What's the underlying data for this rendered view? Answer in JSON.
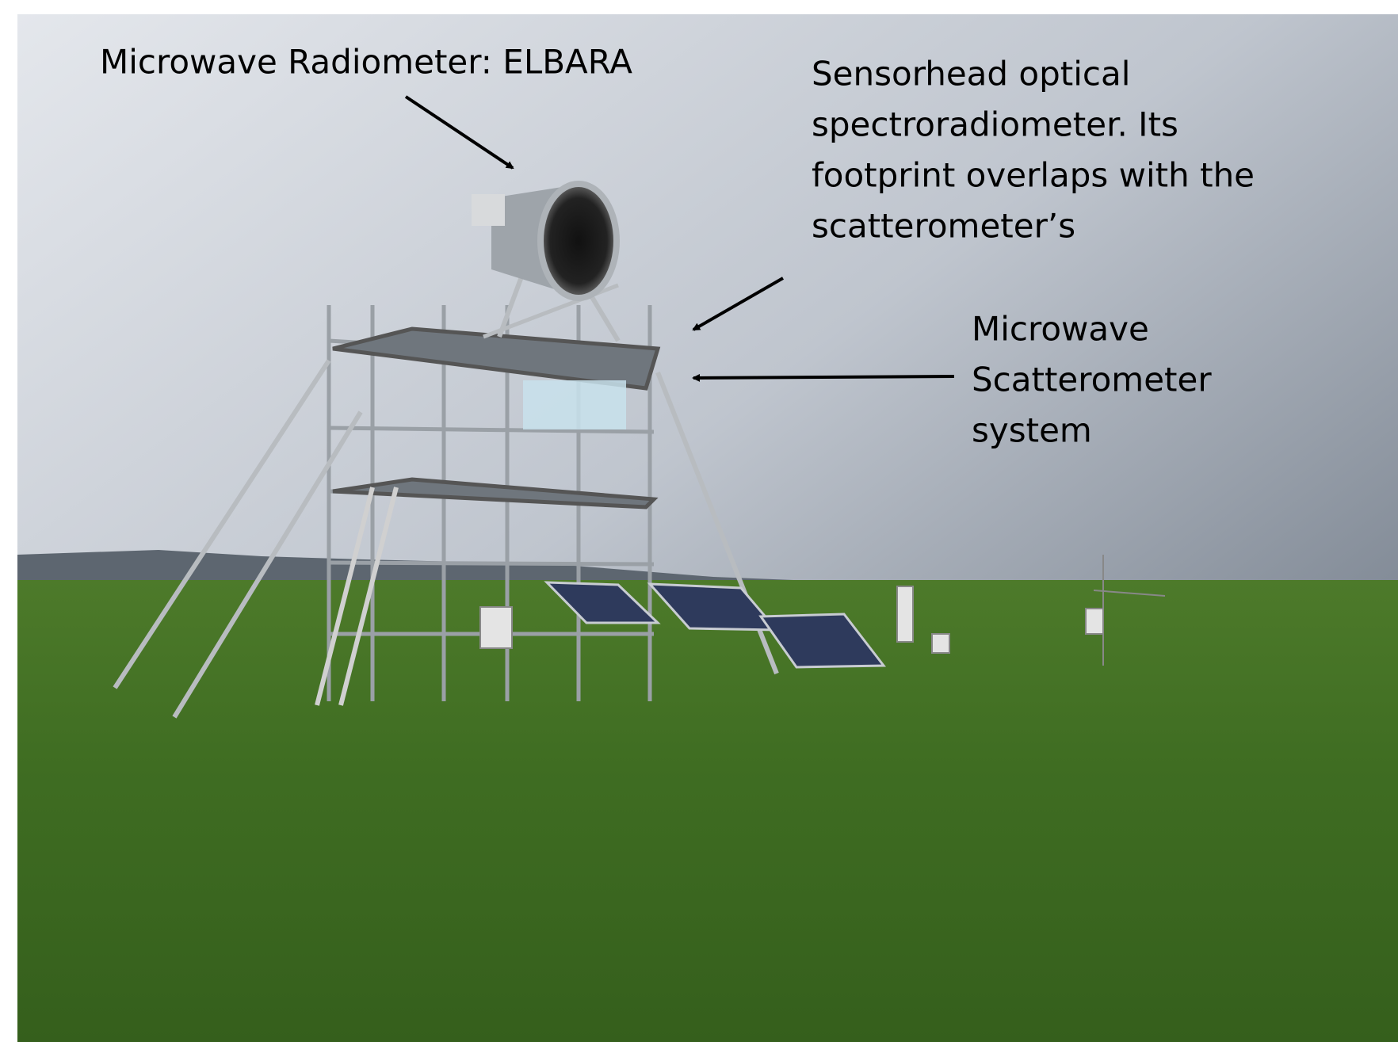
{
  "annotations": [
    {
      "lines": [
        "Microwave Radiometer: ELBARA"
      ]
    },
    {
      "lines": [
        "Sensorhead optical",
        "spectroradiometer. Its",
        "footprint overlaps with the",
        "scatterometer’s"
      ]
    },
    {
      "lines": [
        "Microwave",
        "Scatterometer",
        "system"
      ]
    }
  ]
}
